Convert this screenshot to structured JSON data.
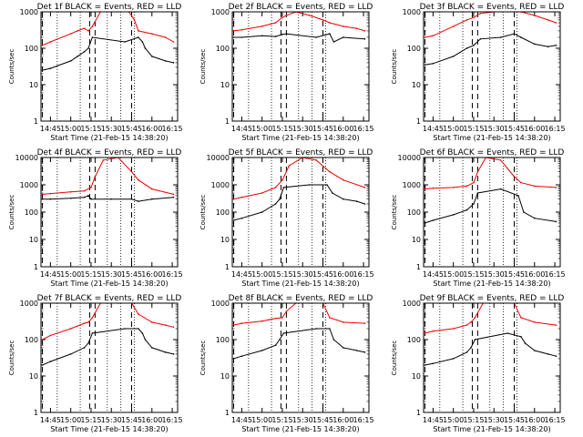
{
  "chart_data": [
    {
      "type": "line",
      "title": "Det 1f BLACK = Events, RED = LLD",
      "xlabel": "Start Time (21-Feb-15 14:38:20)",
      "ylabel": "Counts/sec",
      "yscale": "log",
      "ylim": [
        1,
        1000
      ],
      "y_ticks": [
        "1",
        "10",
        "100",
        "1000"
      ],
      "x_range": [
        "14:38",
        "16:19"
      ],
      "x_ticks": [
        "14:45",
        "15:00",
        "15:15",
        "15:30",
        "15:45",
        "16:00",
        "16:15"
      ],
      "series": [
        {
          "name": "BLACK = Events",
          "color": "#000000",
          "x": [
            "14:39",
            "14:45",
            "15:00",
            "15:05",
            "15:10",
            "15:13",
            "15:16",
            "15:40",
            "15:50",
            "15:53",
            "15:55",
            "16:00",
            "16:10",
            "16:16"
          ],
          "values": [
            25,
            28,
            45,
            60,
            80,
            100,
            200,
            150,
            200,
            150,
            100,
            60,
            45,
            40
          ]
        },
        {
          "name": "RED = LLD",
          "color": "#ee0000",
          "x": [
            "14:39",
            "14:45",
            "15:00",
            "15:05",
            "15:10",
            "15:13",
            "15:16",
            "15:22",
            "15:35",
            "15:43",
            "15:47",
            "15:50",
            "16:00",
            "16:10",
            "16:16"
          ],
          "values": [
            120,
            150,
            250,
            300,
            350,
            300,
            400,
            1000,
            1000,
            1000,
            600,
            300,
            250,
            200,
            150
          ]
        }
      ],
      "dashed_markers": [
        "14:39",
        "15:14",
        "15:18",
        "15:45"
      ],
      "dotted_markers": [
        "14:50",
        "15:07",
        "15:27",
        "15:37",
        "15:47"
      ]
    },
    {
      "type": "line",
      "title": "Det 2f BLACK = Events, RED = LLD",
      "xlabel": "Start Time (21-Feb-15 14:38:20)",
      "ylabel": "Counts/sec",
      "yscale": "log",
      "ylim": [
        1,
        1000
      ],
      "y_ticks": [
        "1",
        "10",
        "100",
        "1000"
      ],
      "x_range": [
        "14:38",
        "16:19"
      ],
      "x_ticks": [
        "14:45",
        "15:00",
        "15:15",
        "15:30",
        "15:45",
        "16:00",
        "16:15"
      ],
      "series": [
        {
          "name": "BLACK = Events",
          "color": "#000000",
          "x": [
            "14:39",
            "14:45",
            "15:00",
            "15:10",
            "15:15",
            "15:18",
            "15:40",
            "15:50",
            "15:53",
            "16:00",
            "16:16"
          ],
          "values": [
            200,
            200,
            220,
            210,
            240,
            250,
            200,
            250,
            150,
            200,
            180
          ]
        },
        {
          "name": "RED = LLD",
          "color": "#ee0000",
          "x": [
            "14:39",
            "14:45",
            "15:00",
            "15:10",
            "15:15",
            "15:18",
            "15:25",
            "15:35",
            "15:45",
            "15:50",
            "16:00",
            "16:10",
            "16:16"
          ],
          "values": [
            300,
            320,
            400,
            500,
            700,
            800,
            1000,
            800,
            600,
            500,
            400,
            350,
            300
          ]
        }
      ],
      "dashed_markers": [
        "14:39",
        "15:14",
        "15:18",
        "15:45"
      ],
      "dotted_markers": [
        "14:50",
        "15:07",
        "15:27",
        "15:37",
        "15:47"
      ]
    },
    {
      "type": "line",
      "title": "Det 3f BLACK = Events, RED = LLD",
      "xlabel": "Start Time (21-Feb-15 14:38:20)",
      "ylabel": "Counts/sec",
      "yscale": "log",
      "ylim": [
        1,
        1000
      ],
      "y_ticks": [
        "1",
        "10",
        "100",
        "1000"
      ],
      "x_range": [
        "14:38",
        "16:19"
      ],
      "x_ticks": [
        "14:45",
        "15:00",
        "15:15",
        "15:30",
        "15:45",
        "16:00",
        "16:15"
      ],
      "series": [
        {
          "name": "BLACK = Events",
          "color": "#000000",
          "x": [
            "14:39",
            "14:45",
            "15:00",
            "15:10",
            "15:15",
            "15:20",
            "15:35",
            "15:45",
            "15:50",
            "16:00",
            "16:10",
            "16:16"
          ],
          "values": [
            35,
            38,
            60,
            100,
            120,
            180,
            200,
            250,
            200,
            130,
            110,
            120
          ]
        },
        {
          "name": "RED = LLD",
          "color": "#ee0000",
          "x": [
            "14:39",
            "14:45",
            "15:00",
            "15:10",
            "15:15",
            "15:20",
            "15:30",
            "15:40",
            "15:50",
            "16:00",
            "16:10",
            "16:16"
          ],
          "values": [
            200,
            220,
            400,
            600,
            700,
            900,
            1000,
            1000,
            1000,
            800,
            600,
            500
          ]
        }
      ],
      "dashed_markers": [
        "14:39",
        "15:14",
        "15:18",
        "15:45"
      ],
      "dotted_markers": [
        "14:50",
        "15:07",
        "15:27",
        "15:37",
        "15:47"
      ]
    },
    {
      "type": "line",
      "title": "Det 4f BLACK = Events, RED = LLD",
      "xlabel": "Start Time (21-Feb-15 14:38:20)",
      "ylabel": "Counts/sec",
      "yscale": "log",
      "ylim": [
        1,
        10000
      ],
      "y_ticks": [
        "1",
        "10",
        "100",
        "1000",
        "10000"
      ],
      "x_range": [
        "14:38",
        "16:19"
      ],
      "x_ticks": [
        "14:45",
        "15:00",
        "15:15",
        "15:30",
        "15:45",
        "16:00",
        "16:15"
      ],
      "series": [
        {
          "name": "BLACK = Events",
          "color": "#000000",
          "x": [
            "14:39",
            "14:45",
            "15:00",
            "15:10",
            "15:13",
            "15:15",
            "15:30",
            "15:45",
            "15:50",
            "16:00",
            "16:16"
          ],
          "values": [
            300,
            300,
            320,
            350,
            400,
            300,
            300,
            300,
            250,
            300,
            350
          ]
        },
        {
          "name": "RED = LLD",
          "color": "#ee0000",
          "x": [
            "14:39",
            "14:45",
            "15:00",
            "15:10",
            "15:15",
            "15:18",
            "15:24",
            "15:35",
            "15:45",
            "15:50",
            "16:00",
            "16:16"
          ],
          "values": [
            450,
            480,
            550,
            600,
            800,
            2000,
            8000,
            10000,
            3000,
            1500,
            700,
            450
          ]
        }
      ],
      "dashed_markers": [
        "14:39",
        "15:14",
        "15:18",
        "15:45"
      ],
      "dotted_markers": [
        "14:50",
        "15:07",
        "15:27",
        "15:37",
        "15:47"
      ]
    },
    {
      "type": "line",
      "title": "Det 5f BLACK = Events, RED = LLD",
      "xlabel": "Start Time (21-Feb-15 14:38:20)",
      "ylabel": "Counts/sec",
      "yscale": "log",
      "ylim": [
        1,
        10000
      ],
      "y_ticks": [
        "1",
        "10",
        "100",
        "1000",
        "10000"
      ],
      "x_range": [
        "14:38",
        "16:19"
      ],
      "x_ticks": [
        "14:45",
        "15:00",
        "15:15",
        "15:30",
        "15:45",
        "16:00",
        "16:15"
      ],
      "series": [
        {
          "name": "BLACK = Events",
          "color": "#000000",
          "x": [
            "14:39",
            "14:45",
            "15:00",
            "15:10",
            "15:13",
            "15:16",
            "15:35",
            "15:48",
            "15:52",
            "16:00",
            "16:10",
            "16:16"
          ],
          "values": [
            50,
            60,
            100,
            200,
            300,
            800,
            1000,
            1000,
            500,
            300,
            250,
            200
          ]
        },
        {
          "name": "RED = LLD",
          "color": "#ee0000",
          "x": [
            "14:39",
            "14:45",
            "15:00",
            "15:10",
            "15:15",
            "15:20",
            "15:30",
            "15:40",
            "15:50",
            "16:00",
            "16:16"
          ],
          "values": [
            300,
            350,
            500,
            800,
            1500,
            5000,
            10000,
            8000,
            3000,
            1500,
            800
          ]
        }
      ],
      "dashed_markers": [
        "14:39",
        "15:14",
        "15:18",
        "15:45"
      ],
      "dotted_markers": [
        "14:50",
        "15:07",
        "15:27",
        "15:37",
        "15:47"
      ]
    },
    {
      "type": "line",
      "title": "Det 6f BLACK = Events, RED = LLD",
      "xlabel": "Start Time (21-Feb-15 14:38:20)",
      "ylabel": "Counts/sec",
      "yscale": "log",
      "ylim": [
        1,
        10000
      ],
      "y_ticks": [
        "1",
        "10",
        "100",
        "1000",
        "10000"
      ],
      "x_range": [
        "14:38",
        "16:19"
      ],
      "x_ticks": [
        "14:45",
        "15:00",
        "15:15",
        "15:30",
        "15:45",
        "16:00",
        "16:15"
      ],
      "series": [
        {
          "name": "BLACK = Events",
          "color": "#000000",
          "x": [
            "14:39",
            "14:45",
            "15:00",
            "15:10",
            "15:15",
            "15:18",
            "15:35",
            "15:48",
            "15:52",
            "16:00",
            "16:16"
          ],
          "values": [
            40,
            50,
            80,
            120,
            200,
            500,
            700,
            400,
            100,
            60,
            45
          ]
        },
        {
          "name": "RED = LLD",
          "color": "#ee0000",
          "x": [
            "14:39",
            "14:45",
            "15:00",
            "15:10",
            "15:15",
            "15:18",
            "15:24",
            "15:35",
            "15:45",
            "15:50",
            "16:00",
            "16:16"
          ],
          "values": [
            700,
            750,
            800,
            900,
            1200,
            3000,
            10000,
            8000,
            2000,
            1200,
            900,
            800
          ]
        }
      ],
      "dashed_markers": [
        "14:39",
        "15:14",
        "15:18",
        "15:45"
      ],
      "dotted_markers": [
        "14:50",
        "15:07",
        "15:27",
        "15:37",
        "15:47"
      ]
    },
    {
      "type": "line",
      "title": "Det 7f BLACK = Events, RED = LLD",
      "xlabel": "Start Time (21-Feb-15 14:38:20)",
      "ylabel": "Counts/sec",
      "yscale": "log",
      "ylim": [
        1,
        1000
      ],
      "y_ticks": [
        "1",
        "10",
        "100",
        "1000"
      ],
      "x_range": [
        "14:38",
        "16:19"
      ],
      "x_ticks": [
        "14:45",
        "15:00",
        "15:15",
        "15:30",
        "15:45",
        "16:00",
        "16:15"
      ],
      "series": [
        {
          "name": "BLACK = Events",
          "color": "#000000",
          "x": [
            "14:39",
            "14:45",
            "15:00",
            "15:10",
            "15:13",
            "15:16",
            "15:40",
            "15:50",
            "15:53",
            "15:55",
            "16:00",
            "16:10",
            "16:16"
          ],
          "values": [
            20,
            25,
            40,
            60,
            80,
            150,
            200,
            200,
            150,
            100,
            60,
            45,
            40
          ]
        },
        {
          "name": "RED = LLD",
          "color": "#ee0000",
          "x": [
            "14:39",
            "14:45",
            "15:00",
            "15:10",
            "15:13",
            "15:16",
            "15:22",
            "15:35",
            "15:45",
            "15:50",
            "16:00",
            "16:10",
            "16:16"
          ],
          "values": [
            100,
            130,
            200,
            280,
            300,
            400,
            1000,
            1000,
            1000,
            500,
            300,
            250,
            220
          ]
        }
      ],
      "dashed_markers": [
        "14:39",
        "15:14",
        "15:18",
        "15:45"
      ],
      "dotted_markers": [
        "14:50",
        "15:07",
        "15:27",
        "15:37",
        "15:47"
      ]
    },
    {
      "type": "line",
      "title": "Det 8f BLACK = Events, RED = LLD",
      "xlabel": "Start Time (21-Feb-15 14:38:20)",
      "ylabel": "Counts/sec",
      "yscale": "log",
      "ylim": [
        1,
        1000
      ],
      "y_ticks": [
        "1",
        "10",
        "100",
        "1000"
      ],
      "x_range": [
        "14:38",
        "16:19"
      ],
      "x_ticks": [
        "14:45",
        "15:00",
        "15:15",
        "15:30",
        "15:45",
        "16:00",
        "16:15"
      ],
      "series": [
        {
          "name": "BLACK = Events",
          "color": "#000000",
          "x": [
            "14:39",
            "14:45",
            "15:00",
            "15:10",
            "15:13",
            "15:16",
            "15:40",
            "15:50",
            "15:53",
            "16:00",
            "16:10",
            "16:16"
          ],
          "values": [
            30,
            35,
            50,
            70,
            100,
            150,
            200,
            200,
            100,
            60,
            50,
            45
          ]
        },
        {
          "name": "RED = LLD",
          "color": "#ee0000",
          "x": [
            "14:39",
            "14:45",
            "15:00",
            "15:05",
            "15:10",
            "15:15",
            "15:18",
            "15:25",
            "15:35",
            "15:45",
            "15:50",
            "16:00",
            "16:16"
          ],
          "values": [
            250,
            280,
            320,
            350,
            380,
            400,
            600,
            1000,
            1000,
            1000,
            400,
            300,
            280
          ]
        }
      ],
      "dashed_markers": [
        "14:39",
        "15:14",
        "15:18",
        "15:45"
      ],
      "dotted_markers": [
        "14:50",
        "15:07",
        "15:27",
        "15:37",
        "15:47"
      ]
    },
    {
      "type": "line",
      "title": "Det 9f BLACK = Events, RED = LLD",
      "xlabel": "Start Time (21-Feb-15 14:38:20)",
      "ylabel": "Counts/sec",
      "yscale": "log",
      "ylim": [
        1,
        1000
      ],
      "y_ticks": [
        "1",
        "10",
        "100",
        "1000"
      ],
      "x_range": [
        "14:38",
        "16:19"
      ],
      "x_ticks": [
        "14:45",
        "15:00",
        "15:15",
        "15:30",
        "15:45",
        "16:00",
        "16:15"
      ],
      "series": [
        {
          "name": "BLACK = Events",
          "color": "#000000",
          "x": [
            "14:39",
            "14:45",
            "15:00",
            "15:10",
            "15:13",
            "15:16",
            "15:40",
            "15:50",
            "15:53",
            "16:00",
            "16:10",
            "16:16"
          ],
          "values": [
            20,
            22,
            30,
            45,
            60,
            100,
            150,
            120,
            80,
            50,
            40,
            35
          ]
        },
        {
          "name": "RED = LLD",
          "color": "#ee0000",
          "x": [
            "14:39",
            "14:45",
            "15:00",
            "15:10",
            "15:13",
            "15:16",
            "15:22",
            "15:35",
            "15:45",
            "15:50",
            "16:00",
            "16:16"
          ],
          "values": [
            150,
            170,
            200,
            250,
            300,
            400,
            1000,
            1000,
            1000,
            400,
            300,
            250
          ]
        }
      ],
      "dashed_markers": [
        "14:39",
        "15:14",
        "15:18",
        "15:45"
      ],
      "dotted_markers": [
        "14:50",
        "15:07",
        "15:27",
        "15:37",
        "15:47"
      ]
    }
  ]
}
